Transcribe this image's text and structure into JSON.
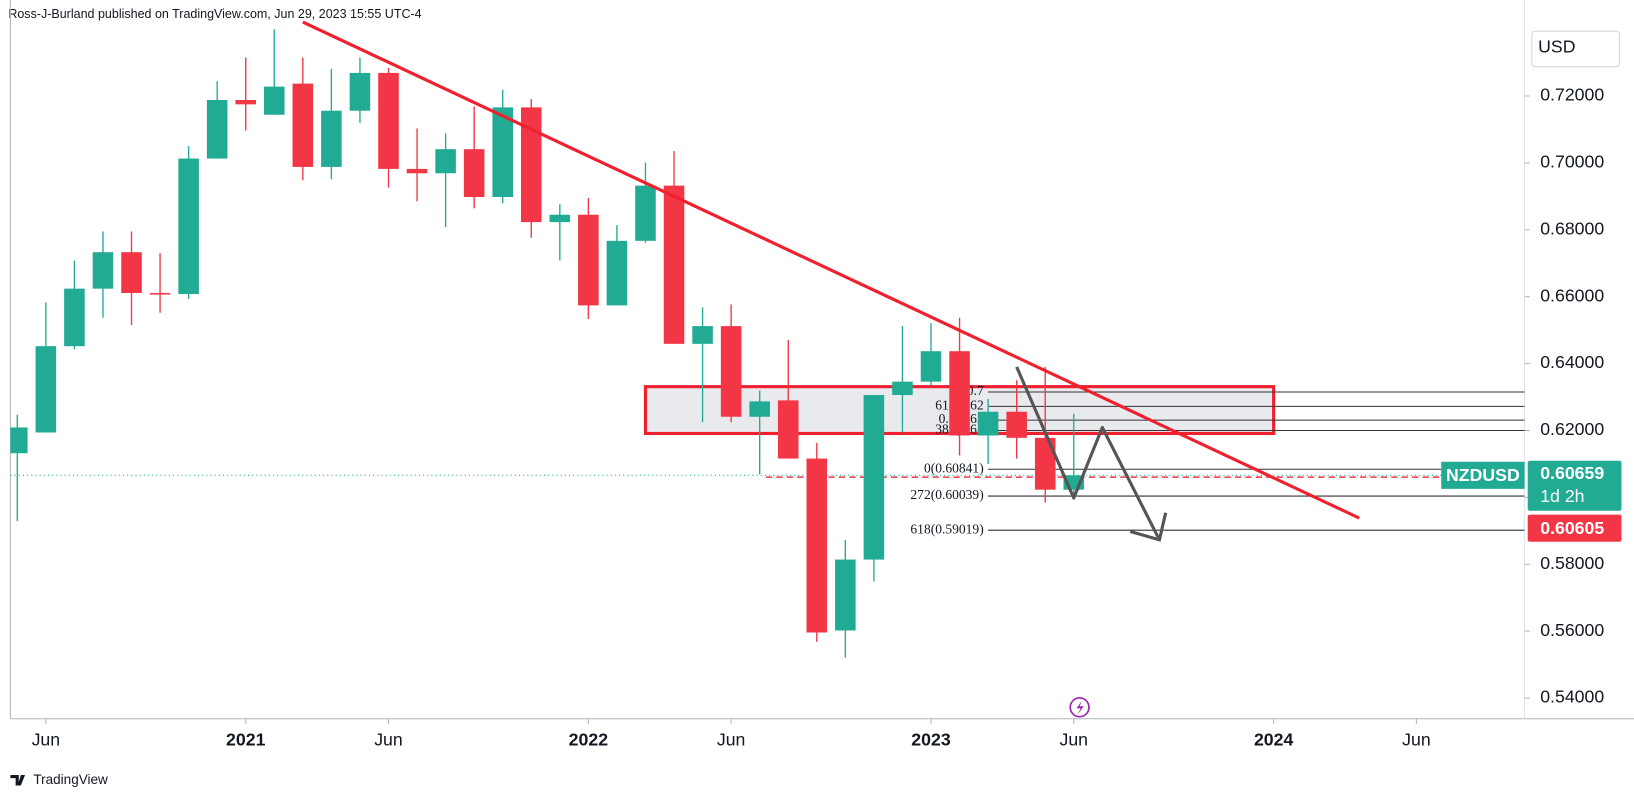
{
  "header": {
    "byline": "Ross-J-Burland published on TradingView.com, Jun 29, 2023 15:55 UTC-4"
  },
  "footer": {
    "brand": "TradingView"
  },
  "chart_data": {
    "type": "candlestick",
    "x": [
      "2020-05",
      "2020-06",
      "2020-07",
      "2020-08",
      "2020-09",
      "2020-10",
      "2020-11",
      "2020-12",
      "2021-01",
      "2021-02",
      "2021-03",
      "2021-04",
      "2021-05",
      "2021-06",
      "2021-07",
      "2021-08",
      "2021-09",
      "2021-10",
      "2021-11",
      "2021-12",
      "2022-01",
      "2022-02",
      "2022-03",
      "2022-04",
      "2022-05",
      "2022-06",
      "2022-07",
      "2022-08",
      "2022-09",
      "2022-10",
      "2022-11",
      "2022-12",
      "2023-01",
      "2023-02",
      "2023-03",
      "2023-04",
      "2023-05",
      "2023-06"
    ],
    "open": [
      0.6132,
      0.6194,
      0.6452,
      0.6624,
      0.6733,
      0.6611,
      0.6608,
      0.7013,
      0.7188,
      0.7144,
      0.7237,
      0.6988,
      0.7156,
      0.7269,
      0.6982,
      0.6969,
      0.7041,
      0.6898,
      0.7166,
      0.6823,
      0.6845,
      0.6574,
      0.6767,
      0.6932,
      0.6459,
      0.6512,
      0.6241,
      0.629,
      0.6116,
      0.5602,
      0.5814,
      0.6306,
      0.6346,
      0.6437,
      0.6185,
      0.6256,
      0.6178,
      0.6023
    ],
    "high": [
      0.6247,
      0.6583,
      0.6708,
      0.6795,
      0.6795,
      0.673,
      0.705,
      0.7244,
      0.7315,
      0.7399,
      0.7315,
      0.7281,
      0.7315,
      0.7284,
      0.7103,
      0.7088,
      0.7169,
      0.7219,
      0.7191,
      0.6876,
      0.6895,
      0.6814,
      0.7001,
      0.7035,
      0.6568,
      0.6577,
      0.6319,
      0.6471,
      0.6163,
      0.5873,
      0.6306,
      0.6512,
      0.6521,
      0.6537,
      0.6294,
      0.635,
      0.639,
      0.625
    ],
    "low": [
      0.5929,
      0.6194,
      0.6443,
      0.6537,
      0.6515,
      0.6552,
      0.6593,
      0.7013,
      0.7097,
      0.7144,
      0.6948,
      0.6951,
      0.7119,
      0.6926,
      0.6885,
      0.6808,
      0.6864,
      0.6879,
      0.6776,
      0.6708,
      0.6533,
      0.6574,
      0.6761,
      0.6459,
      0.6225,
      0.6225,
      0.6069,
      0.6116,
      0.5568,
      0.5521,
      0.5748,
      0.6194,
      0.6334,
      0.6125,
      0.61,
      0.6116,
      0.5985,
      0.5998
    ],
    "close": [
      0.6209,
      0.6452,
      0.6624,
      0.6733,
      0.6611,
      0.6608,
      0.7013,
      0.7188,
      0.7175,
      0.7228,
      0.6988,
      0.7156,
      0.7269,
      0.6982,
      0.6969,
      0.7041,
      0.6898,
      0.7166,
      0.6823,
      0.6845,
      0.6574,
      0.6767,
      0.6932,
      0.6459,
      0.6512,
      0.6241,
      0.6287,
      0.6116,
      0.5596,
      0.5814,
      0.6306,
      0.6346,
      0.6437,
      0.6185,
      0.6256,
      0.6178,
      0.6023,
      0.6066
    ],
    "up_color": "#22ab94",
    "down_color": "#f23645",
    "xlim": [
      "2020-04",
      "2024-10"
    ],
    "xticks": [
      {
        "value": "2020-06",
        "label": "Jun"
      },
      {
        "value": "2021-01",
        "label": "2021"
      },
      {
        "value": "2021-06",
        "label": "Jun"
      },
      {
        "value": "2022-01",
        "label": "2022"
      },
      {
        "value": "2022-06",
        "label": "Jun"
      },
      {
        "value": "2023-01",
        "label": "2023"
      },
      {
        "value": "2023-06",
        "label": "Jun"
      },
      {
        "value": "2024-01",
        "label": "2024"
      },
      {
        "value": "2024-06",
        "label": "Jun"
      }
    ],
    "ylim": [
      0.5338,
      0.7487
    ],
    "yticks": [
      {
        "value": 0.54,
        "label": "0.54000"
      },
      {
        "value": 0.56,
        "label": "0.56000"
      },
      {
        "value": 0.58,
        "label": "0.58000"
      },
      {
        "value": 0.6,
        "label": "0.60000"
      },
      {
        "value": 0.62,
        "label": "0.62000"
      },
      {
        "value": 0.64,
        "label": "0.64000"
      },
      {
        "value": 0.66,
        "label": "0.66000"
      },
      {
        "value": 0.68,
        "label": "0.68000"
      },
      {
        "value": 0.7,
        "label": "0.70000"
      },
      {
        "value": 0.72,
        "label": "0.72000"
      }
    ],
    "currency": "USD",
    "symbol": "NZDUSD",
    "last_price": 0.60659,
    "countdown": "1d 2h",
    "ref_price": 0.60605,
    "trendline": {
      "color": "#f0202f",
      "x": [
        "2021-03",
        "2024-04"
      ],
      "y": [
        0.7421,
        0.5938
      ]
    },
    "zone": {
      "color": "#f0202f",
      "x": [
        "2022-03",
        "2024-01"
      ],
      "y": [
        0.6331,
        0.6191
      ]
    },
    "fib_levels": [
      {
        "value": 0.6315,
        "label": "0.7"
      },
      {
        "value": 0.6272,
        "label": "618(0.62"
      },
      {
        "value": 0.6231,
        "label": "0.5(0.62"
      },
      {
        "value": 0.62,
        "label": "382(0.61"
      },
      {
        "value": 0.60841,
        "label": "0(0.60841)"
      },
      {
        "value": 0.60039,
        "label": "272(0.60039)"
      },
      {
        "value": 0.59019,
        "label": "618(0.59019)"
      }
    ],
    "forecast": {
      "color": "#555555",
      "x": [
        "2023-04",
        "2023-06",
        "2023-07",
        "2023-09"
      ],
      "y": [
        0.639,
        0.5998,
        0.6209,
        0.5873
      ]
    }
  }
}
